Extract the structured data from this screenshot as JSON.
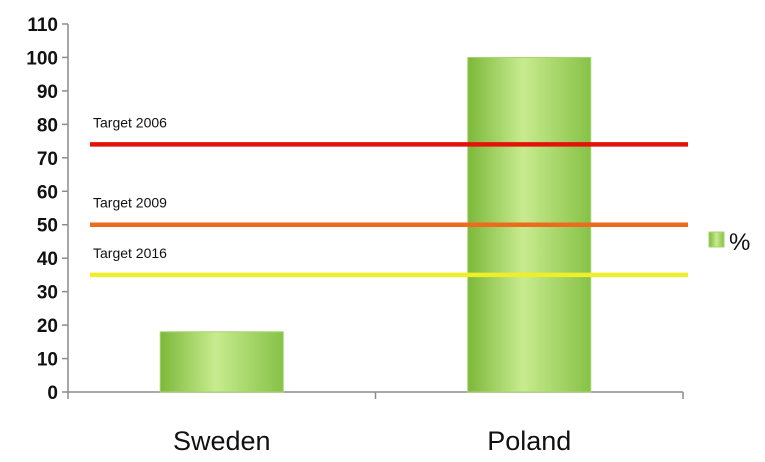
{
  "chart_data": {
    "type": "bar",
    "categories": [
      "Sweden",
      "Poland"
    ],
    "series": [
      {
        "name": "%",
        "values": [
          18,
          100
        ],
        "color": "#92d050"
      }
    ],
    "reference_lines": [
      {
        "label": "Target 2006",
        "value": 74,
        "color": "#e3120b"
      },
      {
        "label": "Target 2009",
        "value": 50,
        "color": "#ee6a1e"
      },
      {
        "label": "Target 2016",
        "value": 35,
        "color": "#eeee2a"
      }
    ],
    "ylim": [
      0,
      110
    ],
    "yticks": [
      0,
      10,
      20,
      30,
      40,
      50,
      60,
      70,
      80,
      90,
      100,
      110
    ],
    "title": "",
    "xlabel": "",
    "ylabel": "",
    "legend_position": "right",
    "grid": false
  }
}
